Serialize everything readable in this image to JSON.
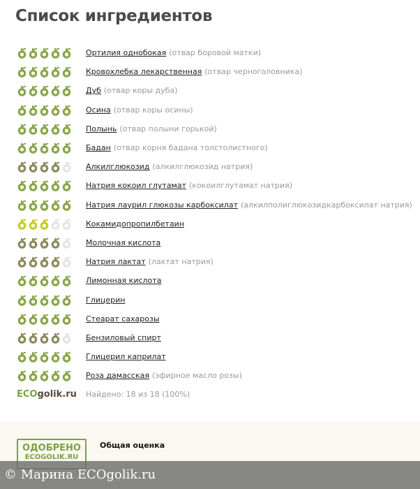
{
  "title": "Список ингредиентов",
  "colors": {
    "green": "#8aa64a",
    "olive": "#8b8a5c",
    "yellow": "#c9cb22",
    "empty": "#e4e4e4"
  },
  "ingredients": [
    {
      "name": "Ортилия однобокая",
      "note": "(отвар боровой матки)",
      "rating": 5,
      "color": "green"
    },
    {
      "name": "Кровохлебка лекарственная",
      "note": "(отвар черноголовника)",
      "rating": 5,
      "color": "green"
    },
    {
      "name": "Дуб",
      "note": "(отвар коры дуба)",
      "rating": 5,
      "color": "green"
    },
    {
      "name": "Осина",
      "note": "(отвар коры осины)",
      "rating": 5,
      "color": "green"
    },
    {
      "name": "Полынь",
      "note": "(отвар полыни горькой)",
      "rating": 5,
      "color": "green"
    },
    {
      "name": "Бадан",
      "note": "(отвар корня бадана толстолистного)",
      "rating": 5,
      "color": "green"
    },
    {
      "name": "Алкилглюкозид",
      "note": "(алкилглюкозид натрия)",
      "rating": 4,
      "color": "olive"
    },
    {
      "name": "Натрия кокоил глутамат",
      "note": "(кокоилглутамат натрия)",
      "rating": 5,
      "color": "green"
    },
    {
      "name": "Натрия лаурил глюкозы карбоксилат",
      "note": "(алкилполиглюкозидкарбоксилат натрия)",
      "rating": 5,
      "color": "green"
    },
    {
      "name": "Кокамидопропилбетаин",
      "note": "",
      "rating": 3,
      "color": "yellow"
    },
    {
      "name": "Молочная кислота",
      "note": "",
      "rating": 4,
      "color": "olive"
    },
    {
      "name": "Натрия лактат",
      "note": "(лактат натрия)",
      "rating": 4,
      "color": "olive"
    },
    {
      "name": "Лимонная кислота",
      "note": "",
      "rating": 5,
      "color": "green"
    },
    {
      "name": "Глицерин",
      "note": "",
      "rating": 5,
      "color": "green"
    },
    {
      "name": "Стеарат сахарозы",
      "note": "",
      "rating": 5,
      "color": "green"
    },
    {
      "name": "Бензиловый спирт",
      "note": "",
      "rating": 4,
      "color": "olive"
    },
    {
      "name": "Глицерил каприлат",
      "note": "",
      "rating": 5,
      "color": "green"
    },
    {
      "name": "Роза дамасская",
      "note": "(эфирное масло розы)",
      "rating": 5,
      "color": "green"
    }
  ],
  "source": {
    "logo_eco": "ECO",
    "logo_rest": "golik.ru",
    "found": "Найдено: 18 из 18 (100%)"
  },
  "footer": {
    "stamp_line1": "ОДОБРЕНО",
    "stamp_line2": "ECOGOLIK.RU",
    "overall": "Общая оценка"
  },
  "watermark": "© Марина  ECOgolik.ru"
}
